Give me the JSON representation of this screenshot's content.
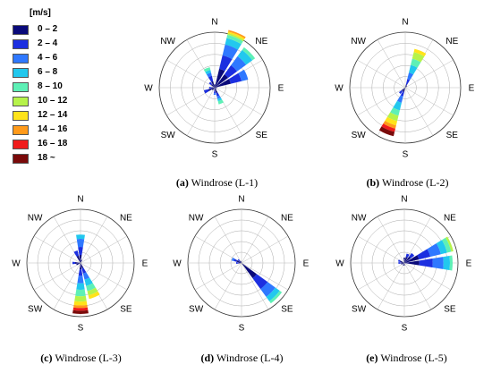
{
  "legend": {
    "unit": "[m/s]",
    "bins": [
      {
        "label": "0 – 2",
        "color": "#0a0a7a"
      },
      {
        "label": "2 – 4",
        "color": "#1c2fe0"
      },
      {
        "label": "4 – 6",
        "color": "#2f78ff"
      },
      {
        "label": "6 – 8",
        "color": "#22c8ee"
      },
      {
        "label": "8 – 10",
        "color": "#5ef0b6"
      },
      {
        "label": "10 – 12",
        "color": "#b6f34a"
      },
      {
        "label": "12 – 14",
        "color": "#ffe31a"
      },
      {
        "label": "14 – 16",
        "color": "#ff9a1a"
      },
      {
        "label": "16 – 18",
        "color": "#f01c1c"
      },
      {
        "label": "18 ~",
        "color": "#7a0a0a"
      }
    ]
  },
  "directions": [
    "N",
    "NE",
    "E",
    "SE",
    "S",
    "SW",
    "W",
    "NW"
  ],
  "chart_data": [
    {
      "type": "windrose",
      "id": "(a)",
      "title": "Windrose (L-1)",
      "rmax": 1.0,
      "petals": [
        {
          "dir": 22.5,
          "stack": [
            0.35,
            0.25,
            0.2,
            0.12,
            0.06,
            0.03,
            0.03,
            0.03
          ]
        },
        {
          "dir": 45,
          "stack": [
            0.3,
            0.2,
            0.2,
            0.14,
            0.06
          ]
        },
        {
          "dir": 67.5,
          "stack": [
            0.3,
            0.2,
            0.12
          ]
        },
        {
          "dir": 0,
          "stack": [
            0.06
          ]
        },
        {
          "dir": 337.5,
          "stack": [
            0.12,
            0.1,
            0.06,
            0.05,
            0.05
          ]
        },
        {
          "dir": 315,
          "stack": [
            0.08,
            0.05
          ]
        },
        {
          "dir": 270,
          "stack": [
            0.06,
            0.04
          ]
        },
        {
          "dir": 247.5,
          "stack": [
            0.12,
            0.08
          ]
        },
        {
          "dir": 225,
          "stack": [
            0.06
          ]
        },
        {
          "dir": 180,
          "stack": [
            0.06,
            0.04,
            0.03
          ]
        },
        {
          "dir": 157.5,
          "stack": [
            0.1,
            0.06,
            0.05,
            0.04,
            0.06
          ]
        },
        {
          "dir": 135,
          "stack": [
            0.04
          ]
        },
        {
          "dir": 90,
          "stack": [
            0.04
          ]
        }
      ]
    },
    {
      "type": "windrose",
      "id": "(b)",
      "title": "Windrose (L-2)",
      "rmax": 1.0,
      "petals": [
        {
          "dir": 22.5,
          "stack": [
            0.06,
            0.1,
            0.12,
            0.14,
            0.12,
            0.12,
            0.06
          ]
        },
        {
          "dir": 202.5,
          "stack": [
            0.08,
            0.08,
            0.12,
            0.14,
            0.1,
            0.1,
            0.08,
            0.06,
            0.06,
            0.08
          ]
        },
        {
          "dir": 225,
          "stack": [
            0.08,
            0.06
          ]
        },
        {
          "dir": 45,
          "stack": [
            0.04
          ]
        }
      ]
    },
    {
      "type": "windrose",
      "id": "(c)",
      "title": "Windrose (L-3)",
      "rmax": 1.0,
      "petals": [
        {
          "dir": 0,
          "stack": [
            0.15,
            0.15,
            0.15,
            0.08
          ]
        },
        {
          "dir": 337.5,
          "stack": [
            0.14,
            0.1
          ]
        },
        {
          "dir": 180,
          "stack": [
            0.12,
            0.12,
            0.14,
            0.12,
            0.12,
            0.1,
            0.07,
            0.05,
            0.05,
            0.06
          ]
        },
        {
          "dir": 157.5,
          "stack": [
            0.1,
            0.1,
            0.12,
            0.12,
            0.1,
            0.08,
            0.07
          ]
        },
        {
          "dir": 270,
          "stack": [
            0.1,
            0.05
          ]
        },
        {
          "dir": 247.5,
          "stack": [
            0.08
          ]
        },
        {
          "dir": 22.5,
          "stack": [
            0.06
          ]
        }
      ]
    },
    {
      "type": "windrose",
      "id": "(d)",
      "title": "Windrose (L-4)",
      "rmax": 1.0,
      "petals": [
        {
          "dir": 135,
          "stack": [
            0.35,
            0.25,
            0.18,
            0.1,
            0.05
          ]
        },
        {
          "dir": 292.5,
          "stack": [
            0.1,
            0.05,
            0.04
          ]
        },
        {
          "dir": 270,
          "stack": [
            0.06,
            0.04
          ]
        },
        {
          "dir": 315,
          "stack": [
            0.05,
            0.04
          ]
        },
        {
          "dir": 337.5,
          "stack": [
            0.04
          ]
        }
      ]
    },
    {
      "type": "windrose",
      "id": "(e)",
      "title": "Windrose (L-5)",
      "rmax": 1.0,
      "petals": [
        {
          "dir": 67.5,
          "stack": [
            0.28,
            0.22,
            0.2,
            0.12,
            0.08,
            0.04
          ]
        },
        {
          "dir": 90,
          "stack": [
            0.28,
            0.25,
            0.2,
            0.12,
            0.05
          ]
        },
        {
          "dir": 45,
          "stack": [
            0.15,
            0.08
          ]
        },
        {
          "dir": 22.5,
          "stack": [
            0.12,
            0.06
          ]
        },
        {
          "dir": 0,
          "stack": [
            0.1
          ]
        },
        {
          "dir": 292.5,
          "stack": [
            0.08,
            0.04
          ]
        },
        {
          "dir": 270,
          "stack": [
            0.07,
            0.04
          ]
        },
        {
          "dir": 247.5,
          "stack": [
            0.06
          ]
        },
        {
          "dir": 180,
          "stack": [
            0.05
          ]
        },
        {
          "dir": 202.5,
          "stack": [
            0.05
          ]
        }
      ]
    }
  ]
}
